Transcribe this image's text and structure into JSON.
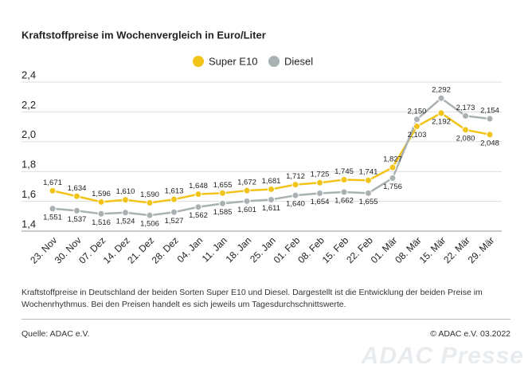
{
  "chart_data": {
    "type": "line",
    "title": "Kraftstoffpreise im Wochenvergleich in Euro/Liter",
    "categories": [
      "23. Nov",
      "30. Nov",
      "07. Dez",
      "14. Dez",
      "21. Dez",
      "28. Dez",
      "04. Jan",
      "11. Jan",
      "18. Jan",
      "25. Jan",
      "01. Feb",
      "08. Feb",
      "15. Feb",
      "22. Feb",
      "01. Mär",
      "08. Mär",
      "15. Mär",
      "22. Mär",
      "29. Mär"
    ],
    "series": [
      {
        "name": "Super E10",
        "color": "#f2c318",
        "values": [
          1.671,
          1.634,
          1.596,
          1.61,
          1.59,
          1.613,
          1.648,
          1.655,
          1.672,
          1.681,
          1.712,
          1.725,
          1.745,
          1.741,
          1.827,
          2.103,
          2.192,
          2.08,
          2.048
        ],
        "value_labels": [
          "1,671",
          "1,634",
          "1,596",
          "1,610",
          "1,590",
          "1,613",
          "1,648",
          "1,655",
          "1,672",
          "1,681",
          "1,712",
          "1,725",
          "1,745",
          "1,741",
          "1,827",
          "2,103",
          "2,192",
          "2,080",
          "2,048"
        ]
      },
      {
        "name": "Diesel",
        "color": "#a9b1b2",
        "values": [
          1.551,
          1.537,
          1.516,
          1.524,
          1.506,
          1.527,
          1.562,
          1.585,
          1.601,
          1.611,
          1.64,
          1.654,
          1.662,
          1.655,
          1.756,
          2.15,
          2.292,
          2.173,
          2.154
        ],
        "value_labels": [
          "1,551",
          "1,537",
          "1,516",
          "1,524",
          "1,506",
          "1,527",
          "1,562",
          "1,585",
          "1,601",
          "1,611",
          "1,640",
          "1,654",
          "1,662",
          "1,655",
          "1,756",
          "2,150",
          "2,292",
          "2,173",
          "2,154"
        ]
      }
    ],
    "ylim": [
      1.4,
      2.4
    ],
    "yticks": [
      {
        "value": 1.4,
        "label": "1,4"
      },
      {
        "value": 1.6,
        "label": "1,6"
      },
      {
        "value": 1.8,
        "label": "1,8"
      },
      {
        "value": 2.0,
        "label": "2,0"
      },
      {
        "value": 2.2,
        "label": "2,2"
      },
      {
        "value": 2.4,
        "label": "2,4"
      }
    ],
    "grid": true,
    "note": "Kraftstoffpreise in Deutschland der beiden Sorten Super E10 und Diesel. Dargestellt ist die Entwicklung der beiden Preise im Wochenrhythmus. Bei den Preisen handelt es sich jeweils um Tagesdurchschnittswerte.",
    "source": "Quelle: ADAC e.V.",
    "copyright": "© ADAC e.V. 03.2022",
    "watermark": "ADAC Presse"
  }
}
